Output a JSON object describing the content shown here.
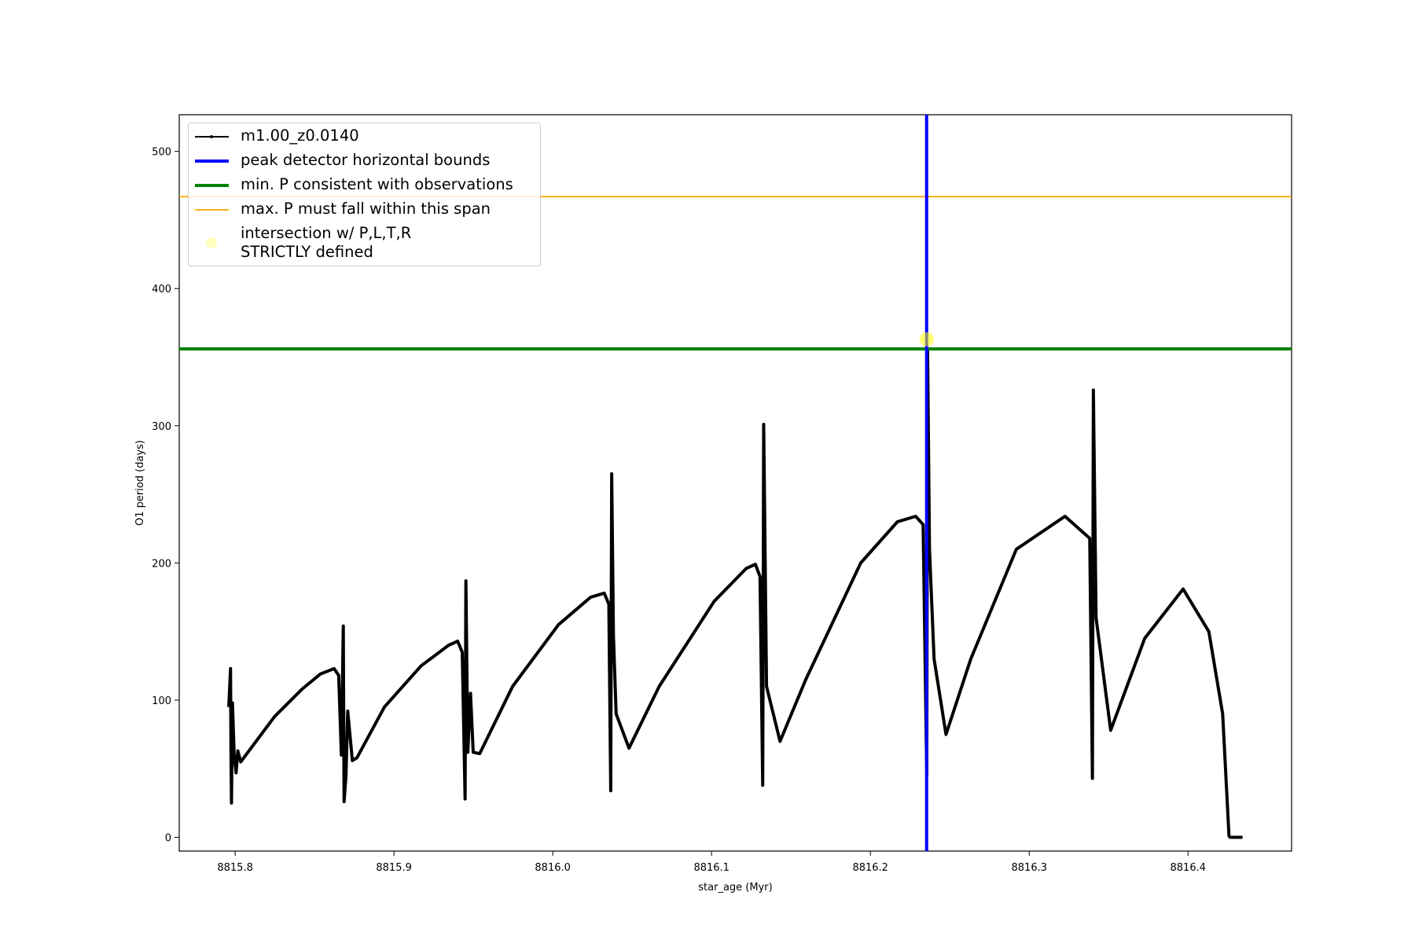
{
  "chart_data": {
    "type": "line",
    "x_label": "star_age (Myr)",
    "y_label": "O1 period (days)",
    "xlim": [
      8815.7648,
      8816.4652
    ],
    "ylim": [
      -10,
      526.7
    ],
    "xticks": [
      8815.8,
      8815.9,
      {
        "value": 8816.0,
        "label": "8816.0"
      },
      8816.1,
      8816.2,
      8816.3,
      8816.4
    ],
    "yticks": [
      0,
      100,
      200,
      300,
      400,
      500
    ],
    "legend": "upper left",
    "series": [
      {
        "name": "m1.00_z0.0140",
        "color": "#000000",
        "x": [
          8815.796,
          8815.7971,
          8815.7974,
          8815.7977,
          8815.7983,
          8815.7994,
          8815.8006,
          8815.8017,
          8815.8035,
          8815.8248,
          8815.8421,
          8815.8536,
          8815.8623,
          8815.8652,
          8815.8669,
          8815.8681,
          8815.8686,
          8815.8698,
          8815.8709,
          8815.8738,
          8815.8767,
          8815.894,
          8815.9171,
          8815.9344,
          8815.9401,
          8815.943,
          8815.9448,
          8815.9453,
          8815.9465,
          8815.9482,
          8815.9499,
          8815.954,
          8815.9747,
          8816.0036,
          8816.0238,
          8816.0324,
          8816.0353,
          8816.0365,
          8816.0371,
          8816.0382,
          8816.0399,
          8816.048,
          8816.067,
          8816.1016,
          8816.1218,
          8816.1276,
          8816.1305,
          8816.1322,
          8816.1328,
          8816.1346,
          8816.1431,
          8816.1593,
          8816.1939,
          8816.217,
          8816.2285,
          8816.2332,
          8816.2355,
          8816.236,
          8816.2372,
          8816.2401,
          8816.2476,
          8816.2632,
          8816.2919,
          8816.3225,
          8816.3381,
          8816.3398,
          8816.3404,
          8816.3421,
          8816.3513,
          8816.3727,
          8816.3969,
          8816.4131,
          8816.4218,
          8816.4258,
          8816.4264,
          8816.4343
        ],
        "values": [
          95,
          123,
          60,
          25,
          98,
          60,
          47,
          63,
          55,
          88,
          108,
          119,
          123,
          118,
          60,
          154,
          26,
          45,
          92,
          56,
          58,
          95,
          125,
          140,
          143,
          135,
          28,
          187,
          62,
          105,
          62,
          61,
          110,
          155,
          175,
          178,
          170,
          34,
          265,
          147,
          90,
          65,
          110,
          172,
          196,
          199,
          190,
          38,
          301,
          110,
          70,
          115,
          200,
          230,
          234,
          228,
          45,
          355,
          210,
          130,
          75,
          130,
          210,
          234,
          218,
          43,
          326,
          160,
          78,
          145,
          181,
          150,
          90,
          1,
          0,
          0
        ]
      }
    ],
    "vlines": [
      {
        "name": "peak detector horizontal bounds",
        "color": "#0000ff",
        "value": 8816.2354
      }
    ],
    "hlines": [
      {
        "name": "min. P consistent with observations",
        "color": "#008000",
        "value": 356
      },
      {
        "name": "max. P must fall within this span",
        "color": "#ffa500",
        "value": 467
      }
    ],
    "points": [
      {
        "name": "intersection w/ P,L,T,R\nSTRICTLY defined",
        "color": "#ffff00",
        "x": 8816.2354,
        "y": 363
      }
    ]
  }
}
